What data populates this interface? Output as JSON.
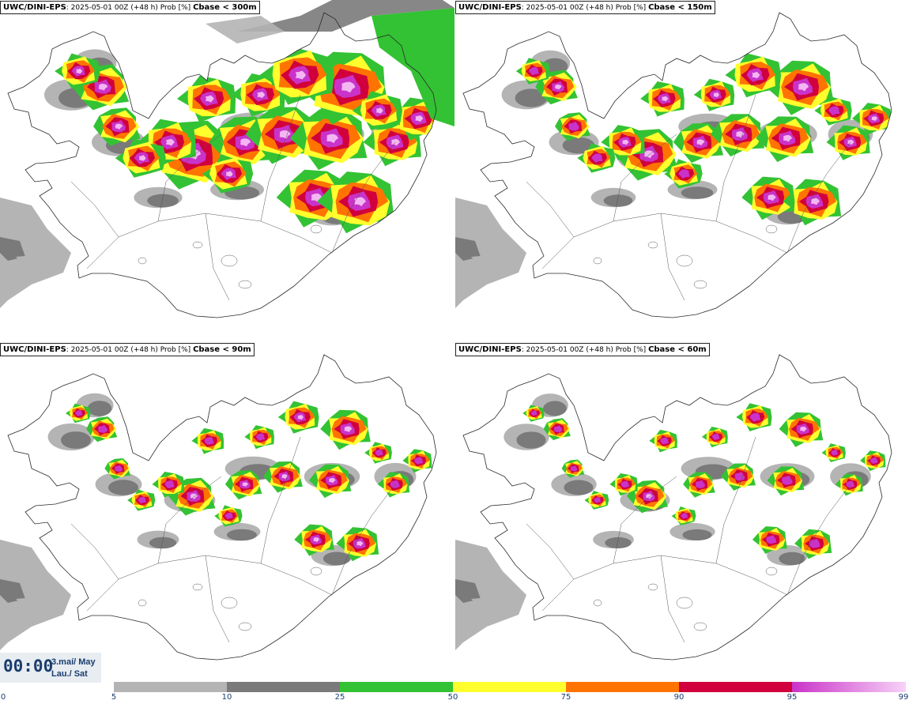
{
  "panels": [
    {
      "model": "UWC/DINI-EPS",
      "run": "2025-05-01 00Z (+48 h) Prob [%]",
      "variable": "Cbase < 300m",
      "level": 4
    },
    {
      "model": "UWC/DINI-EPS",
      "run": "2025-05-01 00Z (+48 h) Prob [%]",
      "variable": "Cbase < 150m",
      "level": 3
    },
    {
      "model": "UWC/DINI-EPS",
      "run": "2025-05-01 00Z (+48 h) Prob [%]",
      "variable": "Cbase < 90m",
      "level": 2
    },
    {
      "model": "UWC/DINI-EPS",
      "run": "2025-05-01 00Z (+48 h) Prob [%]",
      "variable": "Cbase < 60m",
      "level": 1
    }
  ],
  "time": {
    "clock": "00:00",
    "date_is": "3.maí/ May",
    "day": "Lau./ Sat"
  },
  "legend": {
    "ticks": [
      "0",
      "5",
      "10",
      "25",
      "50",
      "75",
      "90",
      "95",
      "99"
    ],
    "colors": [
      "#b4b4b4",
      "#7a7a7a",
      "#33c233",
      "#ffff2e",
      "#ff7400",
      "#d1003c",
      "#c933c9"
    ],
    "gradient_end": "#f7d2f7"
  },
  "map_colors": {
    "land": "#ffffff",
    "outline": "#2a2a2a",
    "grey_light": "#b4b4b4",
    "grey_dark": "#7a7a7a"
  }
}
